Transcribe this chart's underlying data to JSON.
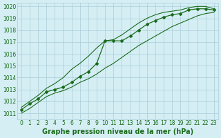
{
  "title": "Graphe pression niveau de la mer (hPa)",
  "background_color": "#d4eef4",
  "grid_color": "#aaccd8",
  "line_color": "#1a6b1a",
  "x_values": [
    0,
    1,
    2,
    3,
    4,
    5,
    6,
    7,
    8,
    9,
    10,
    11,
    12,
    13,
    14,
    15,
    16,
    17,
    18,
    19,
    20,
    21,
    22,
    23
  ],
  "y_main": [
    1011.3,
    1011.8,
    1012.2,
    1012.8,
    1013.0,
    1013.2,
    1013.6,
    1014.1,
    1014.5,
    1015.2,
    1017.1,
    1017.1,
    1017.1,
    1017.5,
    1018.0,
    1018.5,
    1018.8,
    1019.1,
    1019.3,
    1019.4,
    1019.7,
    1019.8,
    1019.8,
    1019.7
  ],
  "y_min": [
    1011.0,
    1011.4,
    1011.9,
    1012.4,
    1012.7,
    1012.9,
    1013.2,
    1013.6,
    1013.9,
    1014.3,
    1014.8,
    1015.2,
    1015.7,
    1016.2,
    1016.7,
    1017.1,
    1017.5,
    1017.9,
    1018.3,
    1018.6,
    1018.9,
    1019.2,
    1019.4,
    1019.5
  ],
  "y_max": [
    1011.5,
    1012.0,
    1012.5,
    1013.1,
    1013.5,
    1014.0,
    1014.7,
    1015.2,
    1015.8,
    1016.5,
    1017.1,
    1017.2,
    1017.6,
    1018.1,
    1018.6,
    1019.0,
    1019.3,
    1019.5,
    1019.6,
    1019.7,
    1019.9,
    1020.0,
    1020.0,
    1019.8
  ],
  "ylim": [
    1011,
    1020
  ],
  "xlim": [
    -0.5,
    23.5
  ],
  "yticks": [
    1011,
    1012,
    1013,
    1014,
    1015,
    1016,
    1017,
    1018,
    1019,
    1020
  ],
  "xticks": [
    0,
    1,
    2,
    3,
    4,
    5,
    6,
    7,
    8,
    9,
    10,
    11,
    12,
    13,
    14,
    15,
    16,
    17,
    18,
    19,
    20,
    21,
    22,
    23
  ],
  "tick_fontsize": 5.5,
  "title_fontsize": 7,
  "marker": "D",
  "markersize": 2.0,
  "linewidth_main": 0.9,
  "linewidth_minmax": 0.8
}
